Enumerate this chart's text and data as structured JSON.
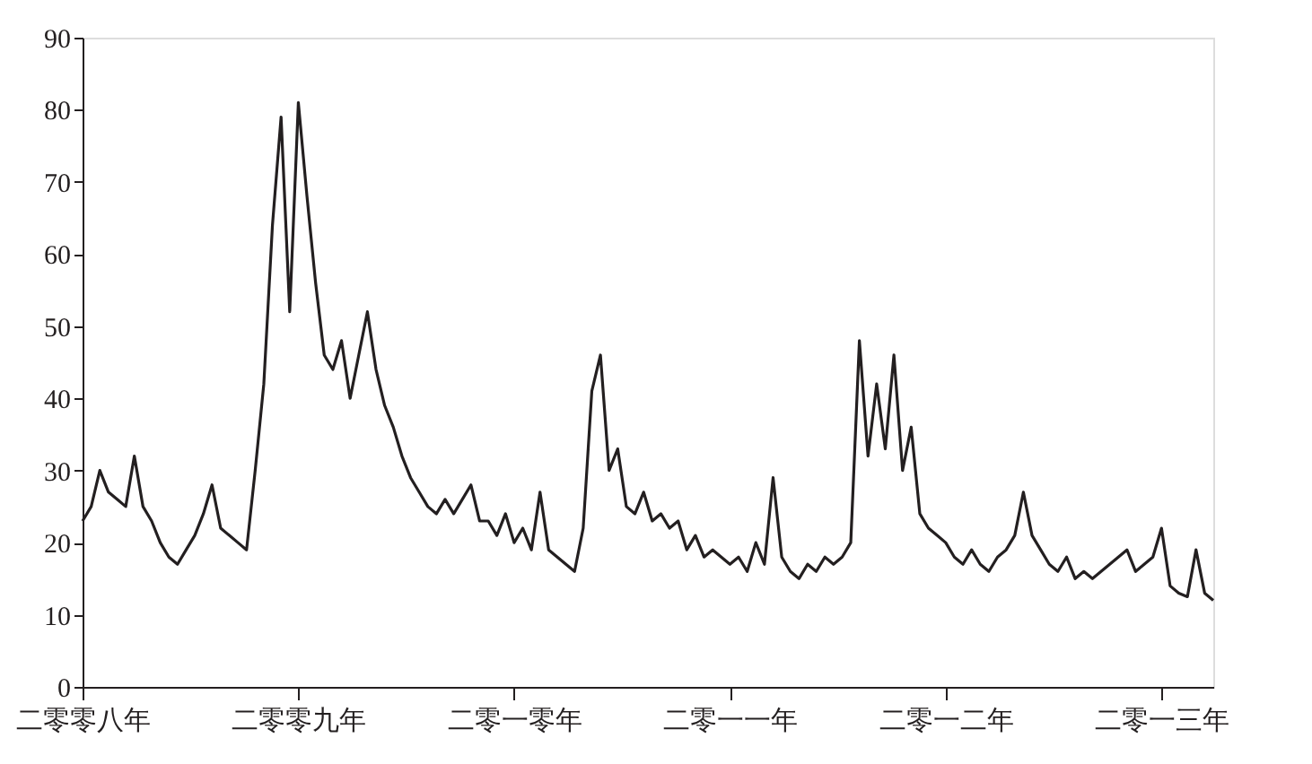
{
  "chart_data": {
    "type": "line",
    "categories": [
      "二零零八年",
      null,
      null,
      null,
      null,
      null,
      null,
      null,
      null,
      null,
      null,
      null,
      null,
      null,
      null,
      null,
      null,
      null,
      null,
      null,
      null,
      null,
      null,
      null,
      null,
      "二零零九年",
      null,
      null,
      null,
      null,
      null,
      null,
      null,
      null,
      null,
      null,
      null,
      null,
      null,
      null,
      null,
      null,
      null,
      null,
      null,
      null,
      null,
      null,
      null,
      null,
      "二零一零年",
      null,
      null,
      null,
      null,
      null,
      null,
      null,
      null,
      null,
      null,
      null,
      null,
      null,
      null,
      null,
      null,
      null,
      null,
      null,
      null,
      null,
      null,
      null,
      null,
      "二零一一年",
      null,
      null,
      null,
      null,
      null,
      null,
      null,
      null,
      null,
      null,
      null,
      null,
      null,
      null,
      null,
      null,
      null,
      null,
      null,
      null,
      null,
      null,
      null,
      null,
      "二零一二年",
      null,
      null,
      null,
      null,
      null,
      null,
      null,
      null,
      null,
      null,
      null,
      null,
      null,
      null,
      null,
      null,
      null,
      null,
      null,
      null,
      null,
      null,
      null,
      null,
      "二零一三年",
      null,
      null,
      null,
      null,
      null,
      null
    ],
    "series": [
      {
        "color": "#231f20",
        "values": [
          23,
          25,
          30,
          27,
          26,
          25,
          32,
          25,
          23,
          20,
          18,
          17,
          19,
          21,
          24,
          28,
          22,
          21,
          20,
          19,
          30,
          42,
          64,
          79,
          52,
          81,
          68,
          56,
          46,
          44,
          48,
          40,
          46,
          52,
          44,
          39,
          36,
          32,
          29,
          27,
          25,
          24,
          26,
          24,
          26,
          28,
          23,
          23,
          21,
          24,
          20,
          22,
          19,
          27,
          19,
          18,
          17,
          16,
          22,
          41,
          46,
          30,
          33,
          25,
          24,
          27,
          23,
          24,
          22,
          23,
          19,
          21,
          18,
          19,
          18,
          17,
          18,
          16,
          20,
          17,
          29,
          18,
          16,
          15,
          17,
          16,
          18,
          17,
          18,
          20,
          48,
          32,
          42,
          33,
          46,
          30,
          36,
          24,
          22,
          21,
          20,
          18,
          17,
          19,
          17,
          16,
          18,
          19,
          21,
          27,
          21,
          19,
          17,
          16,
          18,
          15,
          16,
          15,
          16,
          17,
          18,
          19,
          16,
          17,
          18,
          22,
          14,
          13,
          12.5,
          19,
          13,
          12
        ]
      }
    ],
    "ylim": [
      0,
      90
    ],
    "yticks": [
      0,
      10,
      20,
      30,
      40,
      50,
      60,
      70,
      80,
      90
    ],
    "grid": false,
    "legend": false,
    "marker": "none",
    "line_style": "solid"
  }
}
